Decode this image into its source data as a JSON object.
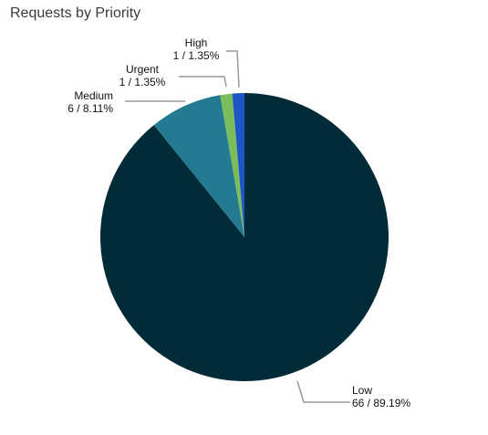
{
  "chart_data": {
    "type": "pie",
    "title": "Requests by Priority",
    "slices": [
      {
        "name": "Low",
        "value": 66,
        "percent": "89.19%",
        "color": "#012b36"
      },
      {
        "name": "Medium",
        "value": 6,
        "percent": "8.11%",
        "color": "#247a91"
      },
      {
        "name": "Urgent",
        "value": 1,
        "percent": "1.35%",
        "color": "#7bbd5a"
      },
      {
        "name": "High",
        "value": 1,
        "percent": "1.35%",
        "color": "#1f56c7"
      }
    ]
  }
}
